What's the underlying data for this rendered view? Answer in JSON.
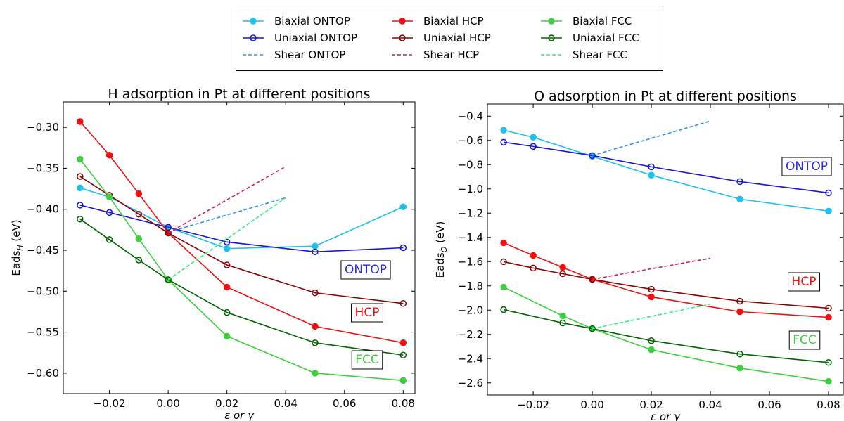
{
  "chart_data": [
    {
      "type": "line",
      "title": "H adsorption in Pt at different positions",
      "x_label": "ε or γ",
      "y_label": "Eads",
      "y_label_sub": "H",
      "y_label_unit": " (eV)",
      "xlim": [
        -0.0357,
        0.084
      ],
      "ylim": [
        -0.625,
        -0.269
      ],
      "xticks": [
        {
          "value": -0.02,
          "label": "−0.02"
        },
        {
          "value": 0,
          "label": "0.00"
        },
        {
          "value": 0.02,
          "label": "0.02"
        },
        {
          "value": 0.04,
          "label": "0.04"
        },
        {
          "value": 0.06,
          "label": "0.06"
        },
        {
          "value": 0.08,
          "label": "0.08"
        }
      ],
      "yticks": [
        {
          "value": -0.3,
          "label": "−0.30"
        },
        {
          "value": -0.35,
          "label": "−0.35"
        },
        {
          "value": -0.4,
          "label": "−0.40"
        },
        {
          "value": -0.45,
          "label": "−0.45"
        },
        {
          "value": -0.5,
          "label": "−0.50"
        },
        {
          "value": -0.55,
          "label": "−0.55"
        },
        {
          "value": -0.6,
          "label": "−0.60"
        }
      ],
      "series": [
        {
          "name": "Biaxial ONTOP",
          "color": "#1ec0f0",
          "marker": "filled",
          "x": [
            -0.03,
            -0.02,
            0,
            0.02,
            0.05,
            0.08
          ],
          "values": [
            -0.374,
            -0.385,
            -0.422,
            -0.448,
            -0.445,
            -0.397
          ]
        },
        {
          "name": "Uniaxial ONTOP",
          "color": "#1414e0",
          "marker": "open",
          "x": [
            -0.03,
            -0.02,
            0,
            0.02,
            0.05,
            0.08
          ],
          "values": [
            -0.395,
            -0.404,
            -0.422,
            -0.44,
            -0.452,
            -0.447
          ]
        },
        {
          "name": "Shear ONTOP",
          "color": "#2f8fe6",
          "dashed": true,
          "x": [
            0,
            0.04
          ],
          "values": [
            -0.428,
            -0.386
          ]
        },
        {
          "name": "Biaxial HCP",
          "color": "#f01010",
          "marker": "filled",
          "x": [
            -0.03,
            -0.02,
            -0.01,
            0,
            0.02,
            0.05,
            0.08
          ],
          "values": [
            -0.293,
            -0.334,
            -0.381,
            -0.429,
            -0.495,
            -0.543,
            -0.563
          ]
        },
        {
          "name": "Uniaxial HCP",
          "color": "#8b0000",
          "marker": "open",
          "x": [
            -0.03,
            -0.02,
            -0.01,
            0,
            0.02,
            0.05,
            0.08
          ],
          "values": [
            -0.36,
            -0.383,
            -0.406,
            -0.429,
            -0.468,
            -0.502,
            -0.515
          ]
        },
        {
          "name": "Shear HCP",
          "color": "#d0204a",
          "dashed": true,
          "x": [
            0,
            0.04
          ],
          "values": [
            -0.429,
            -0.348
          ]
        },
        {
          "name": "Biaxial FCC",
          "color": "#3ecf3e",
          "marker": "filled",
          "x": [
            -0.03,
            -0.02,
            -0.01,
            0,
            0.02,
            0.05,
            0.08
          ],
          "values": [
            -0.339,
            -0.385,
            -0.436,
            -0.486,
            -0.555,
            -0.6,
            -0.609
          ]
        },
        {
          "name": "Uniaxial FCC",
          "color": "#006400",
          "marker": "open",
          "x": [
            -0.03,
            -0.02,
            -0.01,
            0,
            0.02,
            0.05,
            0.08
          ],
          "values": [
            -0.412,
            -0.437,
            -0.462,
            -0.486,
            -0.526,
            -0.563,
            -0.578
          ]
        },
        {
          "name": "Shear FCC",
          "color": "#30ee80",
          "dashed": true,
          "x": [
            0,
            0.04
          ],
          "values": [
            -0.486,
            -0.386
          ]
        }
      ],
      "annotations": [
        {
          "text": "ONTOP",
          "color": "#2a2ae6"
        },
        {
          "text": "HCP",
          "color": "#f01010"
        },
        {
          "text": "FCC",
          "color": "#3ecf3e"
        }
      ]
    },
    {
      "type": "line",
      "title": "O adsorption in Pt at different positions",
      "x_label": "ε or γ",
      "y_label": "Eads",
      "y_label_sub": "O",
      "y_label_unit": " (eV)",
      "xlim": [
        -0.0355,
        0.085
      ],
      "ylim": [
        -2.7,
        -0.3
      ],
      "xticks": [
        {
          "value": -0.02,
          "label": "−0.02"
        },
        {
          "value": 0,
          "label": "0.00"
        },
        {
          "value": 0.02,
          "label": "0.02"
        },
        {
          "value": 0.04,
          "label": "0.04"
        },
        {
          "value": 0.06,
          "label": "0.06"
        },
        {
          "value": 0.08,
          "label": "0.08"
        }
      ],
      "yticks": [
        {
          "value": -0.4,
          "label": "−0.4"
        },
        {
          "value": -0.6,
          "label": "−0.6"
        },
        {
          "value": -0.8,
          "label": "−0.8"
        },
        {
          "value": -1.0,
          "label": "−1.0"
        },
        {
          "value": -1.2,
          "label": "−1.2"
        },
        {
          "value": -1.4,
          "label": "−1.4"
        },
        {
          "value": -1.6,
          "label": "−1.6"
        },
        {
          "value": -1.8,
          "label": "−1.8"
        },
        {
          "value": -2.0,
          "label": "−2.0"
        },
        {
          "value": -2.2,
          "label": "−2.2"
        },
        {
          "value": -2.4,
          "label": "−2.4"
        },
        {
          "value": -2.6,
          "label": "−2.6"
        }
      ],
      "series": [
        {
          "name": "Biaxial ONTOP",
          "color": "#1ec0f0",
          "marker": "filled",
          "x": [
            -0.03,
            -0.02,
            0,
            0.02,
            0.05,
            0.08
          ],
          "values": [
            -0.516,
            -0.574,
            -0.731,
            -0.887,
            -1.084,
            -1.183
          ]
        },
        {
          "name": "Uniaxial ONTOP",
          "color": "#1414e0",
          "marker": "open",
          "x": [
            -0.03,
            -0.02,
            0,
            0.02,
            0.05,
            0.08
          ],
          "values": [
            -0.615,
            -0.65,
            -0.725,
            -0.818,
            -0.94,
            -1.033
          ]
        },
        {
          "name": "Shear ONTOP",
          "color": "#2f8fe6",
          "dashed": true,
          "x": [
            0,
            0.04
          ],
          "values": [
            -0.725,
            -0.44
          ]
        },
        {
          "name": "Biaxial HCP",
          "color": "#f01010",
          "marker": "filled",
          "x": [
            -0.03,
            -0.02,
            -0.01,
            0,
            0.02,
            0.05,
            0.08
          ],
          "values": [
            -1.445,
            -1.549,
            -1.648,
            -1.746,
            -1.891,
            -2.013,
            -2.06
          ]
        },
        {
          "name": "Uniaxial HCP",
          "color": "#8b0000",
          "marker": "open",
          "x": [
            -0.03,
            -0.02,
            -0.01,
            0,
            0.02,
            0.05,
            0.08
          ],
          "values": [
            -1.601,
            -1.653,
            -1.7,
            -1.746,
            -1.828,
            -1.926,
            -1.984
          ]
        },
        {
          "name": "Shear HCP",
          "color": "#d0204a",
          "dashed": true,
          "x": [
            0,
            0.04
          ],
          "values": [
            -1.746,
            -1.572
          ]
        },
        {
          "name": "Biaxial FCC",
          "color": "#3ecf3e",
          "marker": "filled",
          "x": [
            -0.03,
            -0.01,
            0,
            0.02,
            0.05,
            0.08
          ],
          "values": [
            -1.81,
            -2.048,
            -2.153,
            -2.327,
            -2.478,
            -2.588
          ]
        },
        {
          "name": "Uniaxial FCC",
          "color": "#006400",
          "marker": "open",
          "x": [
            -0.03,
            -0.01,
            0,
            0.02,
            0.05,
            0.08
          ],
          "values": [
            -1.996,
            -2.106,
            -2.153,
            -2.252,
            -2.362,
            -2.432
          ]
        },
        {
          "name": "Shear FCC",
          "color": "#30ee80",
          "dashed": true,
          "x": [
            0,
            0.04
          ],
          "values": [
            -2.153,
            -1.95
          ]
        }
      ],
      "annotations": [
        {
          "text": "ONTOP",
          "color": "#2a2ae6"
        },
        {
          "text": "HCP",
          "color": "#f01010"
        },
        {
          "text": "FCC",
          "color": "#3ecf3e"
        }
      ]
    }
  ]
}
